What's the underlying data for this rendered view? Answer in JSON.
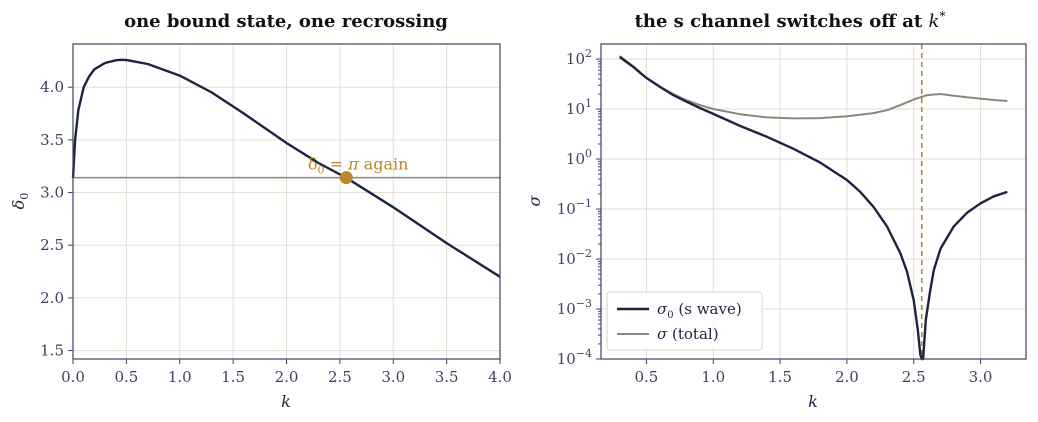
{
  "colors": {
    "dark": "#1c2440",
    "gray": "#8c877a",
    "gold": "#b8892a"
  },
  "chart_data": [
    {
      "type": "line",
      "title": "one bound state, one recrossing",
      "xlabel": "k",
      "ylabel": "δ0",
      "xlim": [
        0.0,
        4.0
      ],
      "ylim": [
        1.42,
        4.41
      ],
      "xticks": [
        "0.0",
        "0.5",
        "1.0",
        "1.5",
        "2.0",
        "2.5",
        "3.0",
        "3.5",
        "4.0"
      ],
      "yticks": [
        "1.5",
        "2.0",
        "2.5",
        "3.0",
        "3.5",
        "4.0"
      ],
      "grid": true,
      "series": [
        {
          "color": "#1c2440",
          "x": [
            0.0,
            0.02,
            0.05,
            0.1,
            0.15,
            0.2,
            0.3,
            0.4,
            0.45,
            0.5,
            0.7,
            1.0,
            1.3,
            1.6,
            2.0,
            2.3,
            2.56,
            3.0,
            3.5,
            4.0
          ],
          "y": [
            3.14,
            3.5,
            3.78,
            4.0,
            4.1,
            4.17,
            4.23,
            4.255,
            4.26,
            4.258,
            4.22,
            4.11,
            3.95,
            3.75,
            3.47,
            3.28,
            3.14,
            2.86,
            2.52,
            2.2
          ]
        }
      ],
      "hline": {
        "y": 3.14159,
        "color": "#8c877a"
      },
      "marker": {
        "x": 2.56,
        "y": 3.14159,
        "color": "#b8892a"
      },
      "annotation": {
        "text": "δ0 = π again",
        "x": 2.2,
        "y": 3.22
      }
    },
    {
      "type": "line",
      "title": "the s channel switches off at k *",
      "xlabel": "k",
      "ylabel": "σ",
      "yscale": "log",
      "xlim": [
        0.16,
        3.34
      ],
      "ylim": [
        0.0001,
        200
      ],
      "xticks": [
        "0.5",
        "1.0",
        "1.5",
        "2.0",
        "2.5",
        "3.0"
      ],
      "yticks": [
        "10−4",
        "10−3",
        "10−2",
        "10−1",
        "100",
        "101",
        "102"
      ],
      "grid": true,
      "vline": {
        "x": 2.56,
        "color": "#b8892a",
        "style": "dashed"
      },
      "legend": "lower-left",
      "series": [
        {
          "name": "σ0 (s wave)",
          "color": "#1c2440",
          "x": [
            0.3,
            0.4,
            0.5,
            0.6,
            0.7,
            0.8,
            0.9,
            1.0,
            1.2,
            1.4,
            1.6,
            1.8,
            2.0,
            2.1,
            2.2,
            2.3,
            2.4,
            2.45,
            2.5,
            2.53,
            2.55,
            2.56,
            2.57,
            2.59,
            2.62,
            2.65,
            2.7,
            2.8,
            2.9,
            3.0,
            3.1,
            3.2
          ],
          "y": [
            110,
            70,
            42,
            28,
            19,
            14,
            10.5,
            8,
            4.6,
            2.8,
            1.6,
            0.85,
            0.38,
            0.22,
            0.11,
            0.045,
            0.013,
            0.0055,
            0.0015,
            0.0004,
            0.00012,
            3e-05,
            9e-05,
            0.0006,
            0.0021,
            0.006,
            0.016,
            0.045,
            0.085,
            0.13,
            0.18,
            0.22
          ]
        },
        {
          "name": "σ (total)",
          "color": "#8c877a",
          "x": [
            0.3,
            0.4,
            0.5,
            0.6,
            0.7,
            0.8,
            0.9,
            1.0,
            1.2,
            1.4,
            1.6,
            1.8,
            2.0,
            2.2,
            2.3,
            2.4,
            2.5,
            2.6,
            2.7,
            2.8,
            2.9,
            3.0,
            3.1,
            3.2
          ],
          "y": [
            115,
            72,
            42,
            28,
            20,
            15,
            12,
            10,
            7.9,
            6.8,
            6.5,
            6.6,
            7.2,
            8.3,
            9.5,
            12,
            15.5,
            19,
            20,
            18.5,
            17.2,
            16.2,
            15.2,
            14.5
          ]
        }
      ]
    }
  ]
}
